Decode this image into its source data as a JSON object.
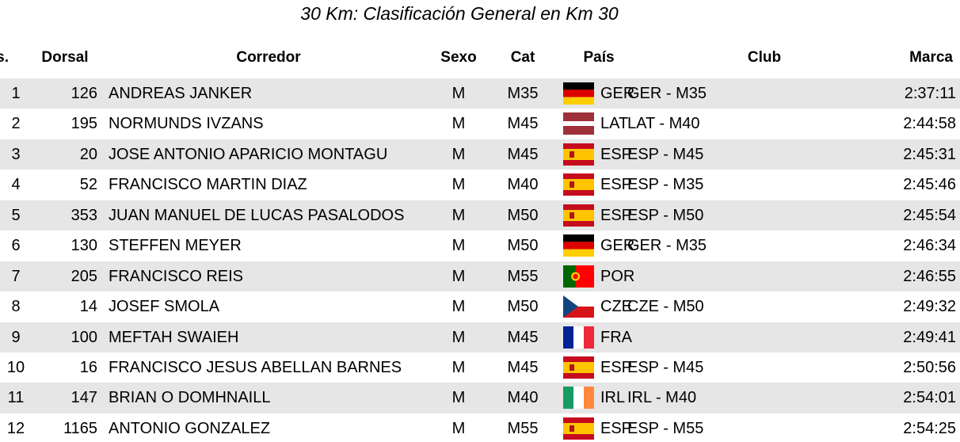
{
  "title": "30 Km: Clasificación General en Km 30",
  "columns": {
    "pos": "Pos.",
    "dorsal": "Dorsal",
    "name": "Corredor",
    "sex": "Sexo",
    "cat": "Cat",
    "country": "País",
    "club": "Club",
    "time": "Marca"
  },
  "rows": [
    {
      "pos": 1,
      "dorsal": 126,
      "name": "ANDREAS JANKER",
      "sex": "M",
      "cat": "M35",
      "country": "GER",
      "club": "GER - M35",
      "time": "2:37:11"
    },
    {
      "pos": 2,
      "dorsal": 195,
      "name": "NORMUNDS IVZANS",
      "sex": "M",
      "cat": "M45",
      "country": "LAT",
      "club": "LAT - M40",
      "time": "2:44:58"
    },
    {
      "pos": 3,
      "dorsal": 20,
      "name": "JOSE ANTONIO APARICIO MONTAGU",
      "sex": "M",
      "cat": "M45",
      "country": "ESP",
      "club": "ESP - M45",
      "time": "2:45:31"
    },
    {
      "pos": 4,
      "dorsal": 52,
      "name": "FRANCISCO MARTIN DIAZ",
      "sex": "M",
      "cat": "M40",
      "country": "ESP",
      "club": "ESP - M35",
      "time": "2:45:46"
    },
    {
      "pos": 5,
      "dorsal": 353,
      "name": "JUAN MANUEL DE LUCAS PASALODOS",
      "sex": "M",
      "cat": "M50",
      "country": "ESP",
      "club": "ESP - M50",
      "time": "2:45:54"
    },
    {
      "pos": 6,
      "dorsal": 130,
      "name": "STEFFEN MEYER",
      "sex": "M",
      "cat": "M50",
      "country": "GER",
      "club": "GER - M35",
      "time": "2:46:34"
    },
    {
      "pos": 7,
      "dorsal": 205,
      "name": "FRANCISCO REIS",
      "sex": "M",
      "cat": "M55",
      "country": "POR",
      "time": "2:46:55"
    },
    {
      "pos": 8,
      "dorsal": 14,
      "name": "JOSEF SMOLA",
      "sex": "M",
      "cat": "M50",
      "country": "CZE",
      "club": "CZE - M50",
      "time": "2:49:32"
    },
    {
      "pos": 9,
      "dorsal": 100,
      "name": "MEFTAH SWAIEH",
      "sex": "M",
      "cat": "M45",
      "country": "FRA",
      "time": "2:49:41"
    },
    {
      "pos": 10,
      "dorsal": 16,
      "name": "FRANCISCO JESUS ABELLAN BARNES",
      "sex": "M",
      "cat": "M45",
      "country": "ESP",
      "club": "ESP - M45",
      "time": "2:50:56"
    },
    {
      "pos": 11,
      "dorsal": 147,
      "name": "BRIAN O DOMHNAILL",
      "sex": "M",
      "cat": "M40",
      "country": "IRL",
      "club": "IRL - M40",
      "time": "2:54:01"
    },
    {
      "pos": 12,
      "dorsal": 1165,
      "name": "ANTONIO GONZALEZ",
      "sex": "M",
      "cat": "M55",
      "country": "ESP",
      "club": "ESP - M55",
      "time": "2:54:25"
    }
  ]
}
